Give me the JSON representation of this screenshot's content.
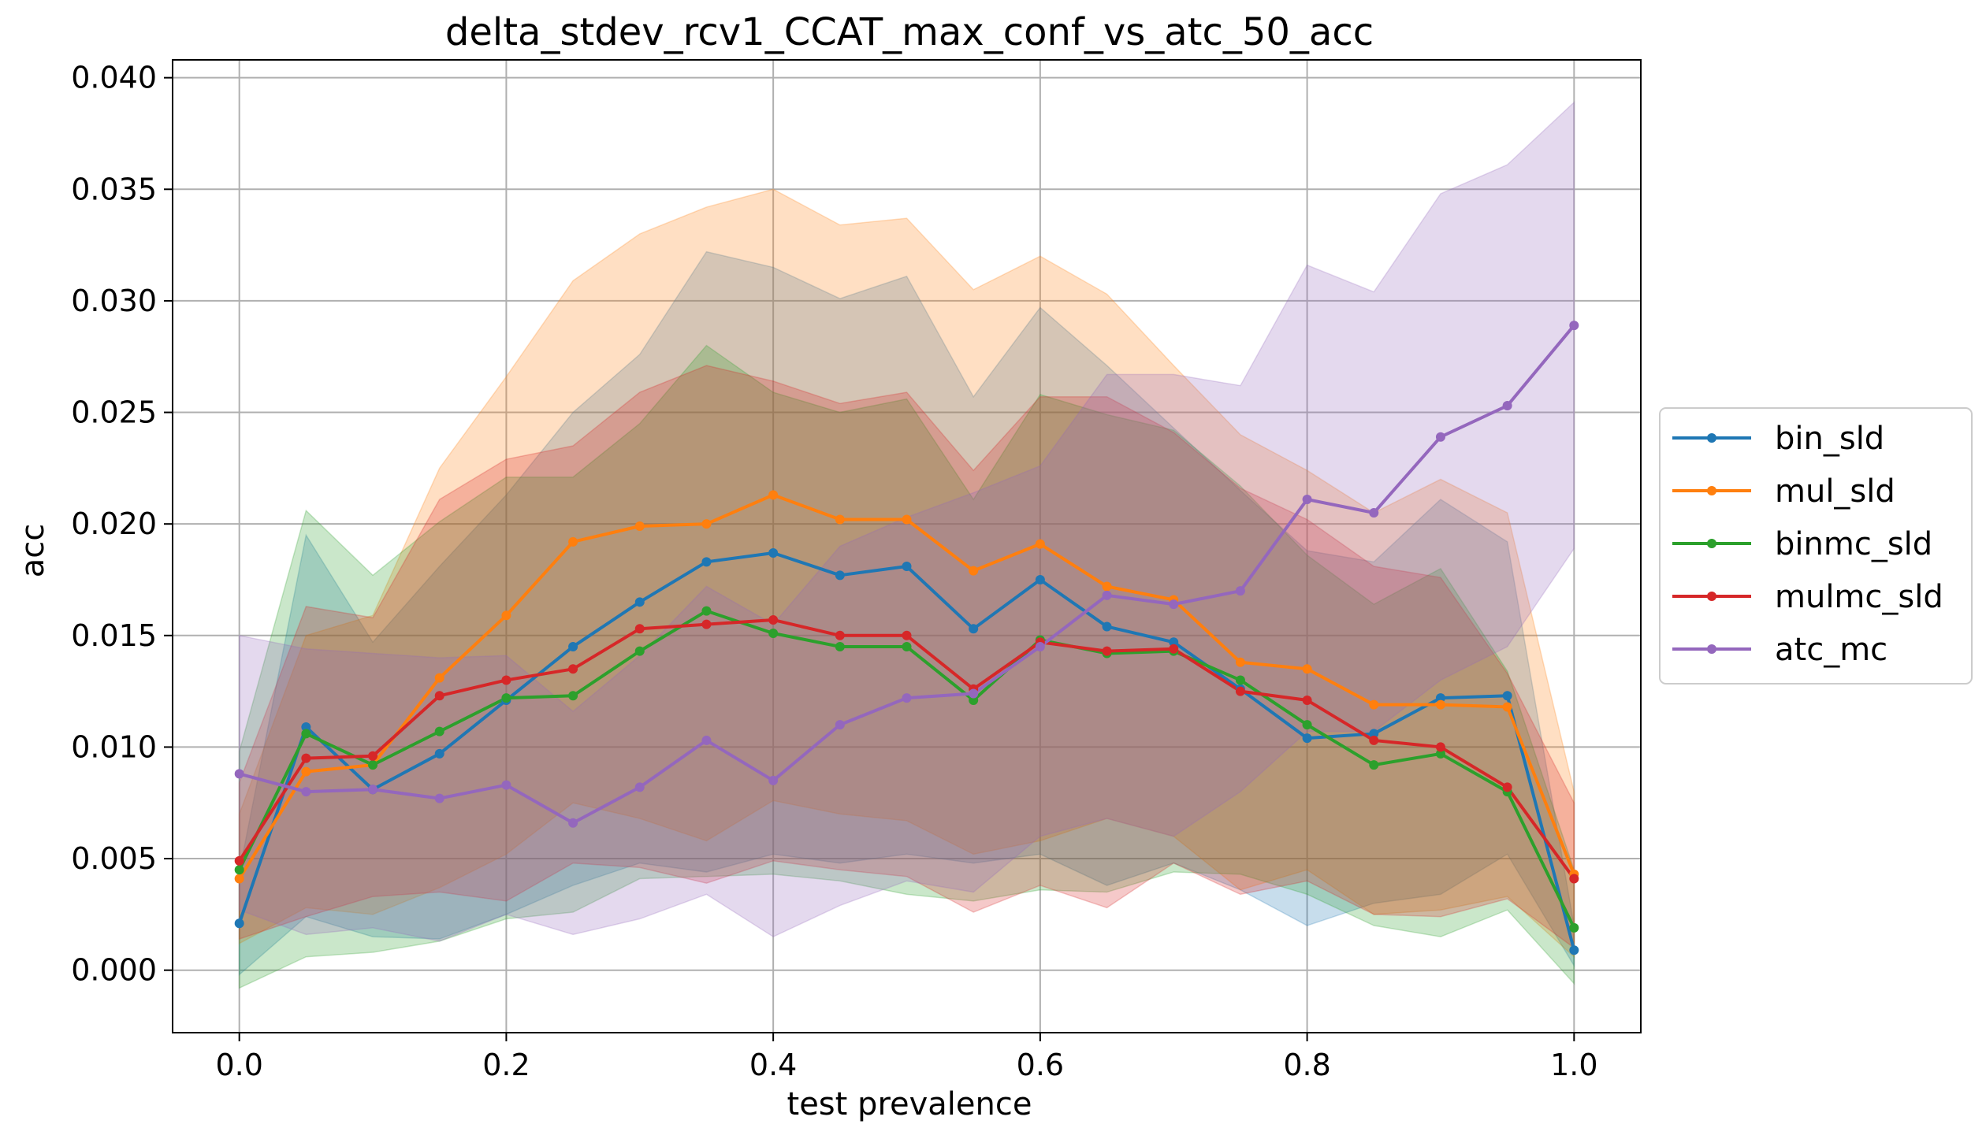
{
  "chart_data": {
    "type": "line",
    "title": "delta_stdev_rcv1_CCAT_max_conf_vs_atc_50_acc",
    "xlabel": "test prevalence",
    "ylabel": "acc",
    "xlim": [
      -0.05,
      1.05
    ],
    "ylim": [
      -0.0028,
      0.0408
    ],
    "xticks": [
      0.0,
      0.2,
      0.4,
      0.6,
      0.8,
      1.0
    ],
    "xtick_labels": [
      "0.0",
      "0.2",
      "0.4",
      "0.6",
      "0.8",
      "1.0"
    ],
    "yticks": [
      0.0,
      0.005,
      0.01,
      0.015,
      0.02,
      0.025,
      0.03,
      0.035,
      0.04
    ],
    "ytick_labels": [
      "0.000",
      "0.005",
      "0.010",
      "0.015",
      "0.020",
      "0.025",
      "0.030",
      "0.035",
      "0.040"
    ],
    "grid": true,
    "legend_position": "center-right outside",
    "x": [
      0.0,
      0.05,
      0.1,
      0.15,
      0.2,
      0.25,
      0.3,
      0.35,
      0.4,
      0.45,
      0.5,
      0.55,
      0.6,
      0.65,
      0.7,
      0.75,
      0.8,
      0.85,
      0.9,
      0.95,
      1.0
    ],
    "series": [
      {
        "name": "bin_sld",
        "color": "#1f77b4",
        "values": [
          0.0021,
          0.0109,
          0.0081,
          0.0097,
          0.0121,
          0.0145,
          0.0165,
          0.0183,
          0.0187,
          0.0177,
          0.0181,
          0.0153,
          0.0175,
          0.0154,
          0.0147,
          0.0126,
          0.0104,
          0.0106,
          0.0122,
          0.0123,
          0.0009
        ],
        "lower": [
          -0.0002,
          0.0024,
          0.0015,
          0.0014,
          0.0025,
          0.0038,
          0.0048,
          0.0044,
          0.0052,
          0.0048,
          0.0052,
          0.0048,
          0.0052,
          0.0038,
          0.0048,
          0.0036,
          0.002,
          0.003,
          0.0034,
          0.0052,
          0.0002
        ],
        "upper": [
          0.0044,
          0.0195,
          0.0147,
          0.0181,
          0.0213,
          0.025,
          0.0276,
          0.0322,
          0.0315,
          0.0301,
          0.0311,
          0.0257,
          0.0297,
          0.0271,
          0.0243,
          0.0215,
          0.0188,
          0.0183,
          0.0211,
          0.0192,
          0.002
        ]
      },
      {
        "name": "mul_sld",
        "color": "#ff7f0e",
        "values": [
          0.0041,
          0.0089,
          0.0092,
          0.0131,
          0.0159,
          0.0192,
          0.0199,
          0.02,
          0.0213,
          0.0202,
          0.0202,
          0.0179,
          0.0191,
          0.0172,
          0.0166,
          0.0138,
          0.0135,
          0.0119,
          0.0119,
          0.0118,
          0.0043
        ],
        "lower": [
          0.0012,
          0.0028,
          0.0025,
          0.0037,
          0.0052,
          0.0075,
          0.0068,
          0.0058,
          0.0076,
          0.007,
          0.0067,
          0.0052,
          0.0058,
          0.0068,
          0.006,
          0.0036,
          0.0045,
          0.0025,
          0.0027,
          0.0033,
          0.0006
        ],
        "upper": [
          0.007,
          0.015,
          0.0159,
          0.0225,
          0.0266,
          0.0309,
          0.033,
          0.0342,
          0.035,
          0.0334,
          0.0337,
          0.0305,
          0.032,
          0.0303,
          0.0271,
          0.024,
          0.0224,
          0.0205,
          0.022,
          0.0205,
          0.008
        ]
      },
      {
        "name": "binmc_sld",
        "color": "#2ca02c",
        "values": [
          0.0045,
          0.0106,
          0.0092,
          0.0107,
          0.0122,
          0.0123,
          0.0143,
          0.0161,
          0.0151,
          0.0145,
          0.0145,
          0.0121,
          0.0148,
          0.0142,
          0.0143,
          0.013,
          0.011,
          0.0092,
          0.0097,
          0.008,
          0.0019
        ],
        "lower": [
          -0.0008,
          0.0006,
          0.0008,
          0.0013,
          0.0023,
          0.0026,
          0.0041,
          0.0042,
          0.0043,
          0.004,
          0.0034,
          0.0031,
          0.0036,
          0.0035,
          0.0044,
          0.0043,
          0.0034,
          0.002,
          0.0015,
          0.0027,
          -0.0006
        ],
        "upper": [
          0.0098,
          0.0206,
          0.0177,
          0.0201,
          0.0221,
          0.0221,
          0.0245,
          0.028,
          0.0259,
          0.025,
          0.0256,
          0.0211,
          0.0258,
          0.0249,
          0.0242,
          0.0217,
          0.0186,
          0.0164,
          0.018,
          0.0134,
          0.0045
        ]
      },
      {
        "name": "mulmc_sld",
        "color": "#d62728",
        "values": [
          0.0049,
          0.0095,
          0.0096,
          0.0123,
          0.013,
          0.0135,
          0.0153,
          0.0155,
          0.0157,
          0.015,
          0.015,
          0.0126,
          0.0147,
          0.0143,
          0.0144,
          0.0125,
          0.0121,
          0.0103,
          0.01,
          0.0082,
          0.0041
        ],
        "lower": [
          0.0014,
          0.0024,
          0.0033,
          0.0035,
          0.0031,
          0.0048,
          0.0046,
          0.0039,
          0.0049,
          0.0045,
          0.0042,
          0.0026,
          0.0038,
          0.0028,
          0.0048,
          0.0034,
          0.004,
          0.0025,
          0.0024,
          0.0032,
          0.001
        ],
        "upper": [
          0.0084,
          0.0163,
          0.0158,
          0.0211,
          0.0229,
          0.0235,
          0.0259,
          0.0271,
          0.0264,
          0.0254,
          0.0259,
          0.0224,
          0.0257,
          0.0257,
          0.0241,
          0.0216,
          0.0202,
          0.0181,
          0.0176,
          0.0133,
          0.0075
        ]
      },
      {
        "name": "atc_mc",
        "color": "#9467bd",
        "values": [
          0.0088,
          0.008,
          0.0081,
          0.0077,
          0.0083,
          0.0066,
          0.0082,
          0.0103,
          0.0085,
          0.011,
          0.0122,
          0.0124,
          0.0145,
          0.0168,
          0.0164,
          0.017,
          0.0211,
          0.0205,
          0.0239,
          0.0253,
          0.0289
        ],
        "lower": [
          0.0027,
          0.0016,
          0.0019,
          0.0013,
          0.0025,
          0.0016,
          0.0023,
          0.0034,
          0.0015,
          0.0029,
          0.004,
          0.0035,
          0.006,
          0.0068,
          0.006,
          0.008,
          0.0107,
          0.0107,
          0.013,
          0.0145,
          0.0189
        ],
        "upper": [
          0.015,
          0.0144,
          0.0142,
          0.014,
          0.0141,
          0.0116,
          0.0141,
          0.0172,
          0.0155,
          0.019,
          0.0203,
          0.0214,
          0.0226,
          0.0267,
          0.0267,
          0.0262,
          0.0316,
          0.0304,
          0.0348,
          0.0361,
          0.0389
        ]
      }
    ]
  }
}
